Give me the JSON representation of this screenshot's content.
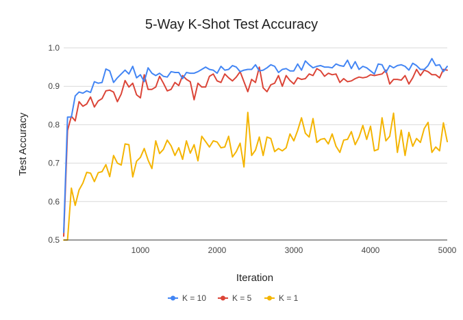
{
  "chart_data": {
    "type": "line",
    "title": "5-Way K-Shot Test Accuracy",
    "xlabel": "Iteration",
    "ylabel": "Test Accuracy",
    "xlim": [
      0,
      5000
    ],
    "ylim": [
      0.5,
      1.0
    ],
    "xticks": [
      1000,
      2000,
      3000,
      4000,
      5000
    ],
    "xtick_labels": [
      "1000",
      "2000",
      "3000",
      "4000",
      "5000"
    ],
    "yticks": [
      0.5,
      0.6,
      0.7,
      0.8,
      0.9,
      1.0
    ],
    "ytick_labels": [
      "0.5",
      "0.6",
      "0.7",
      "0.8",
      "0.9",
      "1.0"
    ],
    "grid": "horizontal",
    "legend_position": "bottom",
    "x": [
      0,
      50,
      100,
      150,
      200,
      250,
      300,
      350,
      400,
      450,
      500,
      550,
      600,
      650,
      700,
      750,
      800,
      850,
      900,
      950,
      1000,
      1050,
      1100,
      1150,
      1200,
      1250,
      1300,
      1350,
      1400,
      1450,
      1500,
      1550,
      1600,
      1650,
      1700,
      1750,
      1800,
      1850,
      1900,
      1950,
      2000,
      2050,
      2100,
      2150,
      2200,
      2250,
      2300,
      2350,
      2400,
      2450,
      2500,
      2550,
      2600,
      2650,
      2700,
      2750,
      2800,
      2850,
      2900,
      2950,
      3000,
      3050,
      3100,
      3150,
      3200,
      3250,
      3300,
      3350,
      3400,
      3450,
      3500,
      3550,
      3600,
      3650,
      3700,
      3750,
      3800,
      3850,
      3900,
      3950,
      4000,
      4050,
      4100,
      4150,
      4200,
      4250,
      4300,
      4350,
      4400,
      4450,
      4500,
      4550,
      4600,
      4650,
      4700,
      4750,
      4800,
      4850,
      4900,
      4950,
      5000
    ],
    "series": [
      {
        "name": "K = 10",
        "color": "#4285f4",
        "values": [
          0.52,
          0.82,
          0.82,
          0.875,
          0.885,
          0.882,
          0.888,
          0.884,
          0.912,
          0.908,
          0.91,
          0.945,
          0.94,
          0.91,
          0.922,
          0.932,
          0.942,
          0.932,
          0.952,
          0.922,
          0.93,
          0.912,
          0.948,
          0.934,
          0.928,
          0.934,
          0.926,
          0.924,
          0.938,
          0.936,
          0.936,
          0.92,
          0.936,
          0.934,
          0.934,
          0.938,
          0.944,
          0.95,
          0.944,
          0.942,
          0.934,
          0.952,
          0.942,
          0.944,
          0.954,
          0.95,
          0.938,
          0.942,
          0.944,
          0.944,
          0.956,
          0.94,
          0.942,
          0.948,
          0.956,
          0.952,
          0.936,
          0.944,
          0.946,
          0.94,
          0.94,
          0.958,
          0.942,
          0.966,
          0.956,
          0.948,
          0.952,
          0.954,
          0.95,
          0.95,
          0.948,
          0.958,
          0.954,
          0.952,
          0.968,
          0.946,
          0.964,
          0.944,
          0.952,
          0.948,
          0.94,
          0.932,
          0.958,
          0.956,
          0.936,
          0.954,
          0.948,
          0.954,
          0.956,
          0.952,
          0.942,
          0.96,
          0.954,
          0.944,
          0.944,
          0.954,
          0.972,
          0.954,
          0.956,
          0.938,
          0.952
        ]
      },
      {
        "name": "K = 5",
        "color": "#db4437",
        "values": [
          0.51,
          0.785,
          0.822,
          0.81,
          0.86,
          0.848,
          0.854,
          0.872,
          0.846,
          0.862,
          0.868,
          0.888,
          0.89,
          0.885,
          0.86,
          0.88,
          0.915,
          0.898,
          0.908,
          0.878,
          0.87,
          0.93,
          0.892,
          0.892,
          0.898,
          0.926,
          0.908,
          0.888,
          0.892,
          0.91,
          0.902,
          0.928,
          0.918,
          0.912,
          0.865,
          0.908,
          0.898,
          0.898,
          0.926,
          0.932,
          0.914,
          0.91,
          0.932,
          0.922,
          0.914,
          0.924,
          0.938,
          0.912,
          0.886,
          0.918,
          0.91,
          0.95,
          0.896,
          0.886,
          0.904,
          0.908,
          0.928,
          0.9,
          0.928,
          0.915,
          0.906,
          0.922,
          0.918,
          0.92,
          0.932,
          0.928,
          0.946,
          0.94,
          0.926,
          0.934,
          0.93,
          0.932,
          0.91,
          0.92,
          0.912,
          0.914,
          0.92,
          0.924,
          0.922,
          0.924,
          0.93,
          0.928,
          0.93,
          0.932,
          0.942,
          0.906,
          0.918,
          0.918,
          0.916,
          0.928,
          0.906,
          0.922,
          0.944,
          0.928,
          0.942,
          0.938,
          0.93,
          0.93,
          0.922,
          0.944,
          0.942
        ]
      },
      {
        "name": "K = 1",
        "color": "#f4b400",
        "values": [
          0.5,
          0.5,
          0.635,
          0.59,
          0.63,
          0.648,
          0.676,
          0.674,
          0.652,
          0.675,
          0.678,
          0.696,
          0.665,
          0.72,
          0.7,
          0.695,
          0.75,
          0.748,
          0.664,
          0.705,
          0.715,
          0.738,
          0.708,
          0.686,
          0.758,
          0.725,
          0.736,
          0.76,
          0.745,
          0.72,
          0.74,
          0.71,
          0.758,
          0.726,
          0.748,
          0.706,
          0.77,
          0.756,
          0.742,
          0.758,
          0.755,
          0.74,
          0.742,
          0.77,
          0.716,
          0.73,
          0.752,
          0.69,
          0.832,
          0.72,
          0.734,
          0.768,
          0.72,
          0.768,
          0.764,
          0.73,
          0.738,
          0.732,
          0.74,
          0.776,
          0.758,
          0.785,
          0.818,
          0.778,
          0.768,
          0.816,
          0.754,
          0.762,
          0.764,
          0.75,
          0.776,
          0.744,
          0.728,
          0.76,
          0.762,
          0.782,
          0.748,
          0.768,
          0.798,
          0.762,
          0.796,
          0.732,
          0.736,
          0.818,
          0.758,
          0.77,
          0.83,
          0.728,
          0.786,
          0.72,
          0.78,
          0.744,
          0.764,
          0.754,
          0.79,
          0.806,
          0.728,
          0.742,
          0.732,
          0.805,
          0.756
        ]
      }
    ]
  }
}
